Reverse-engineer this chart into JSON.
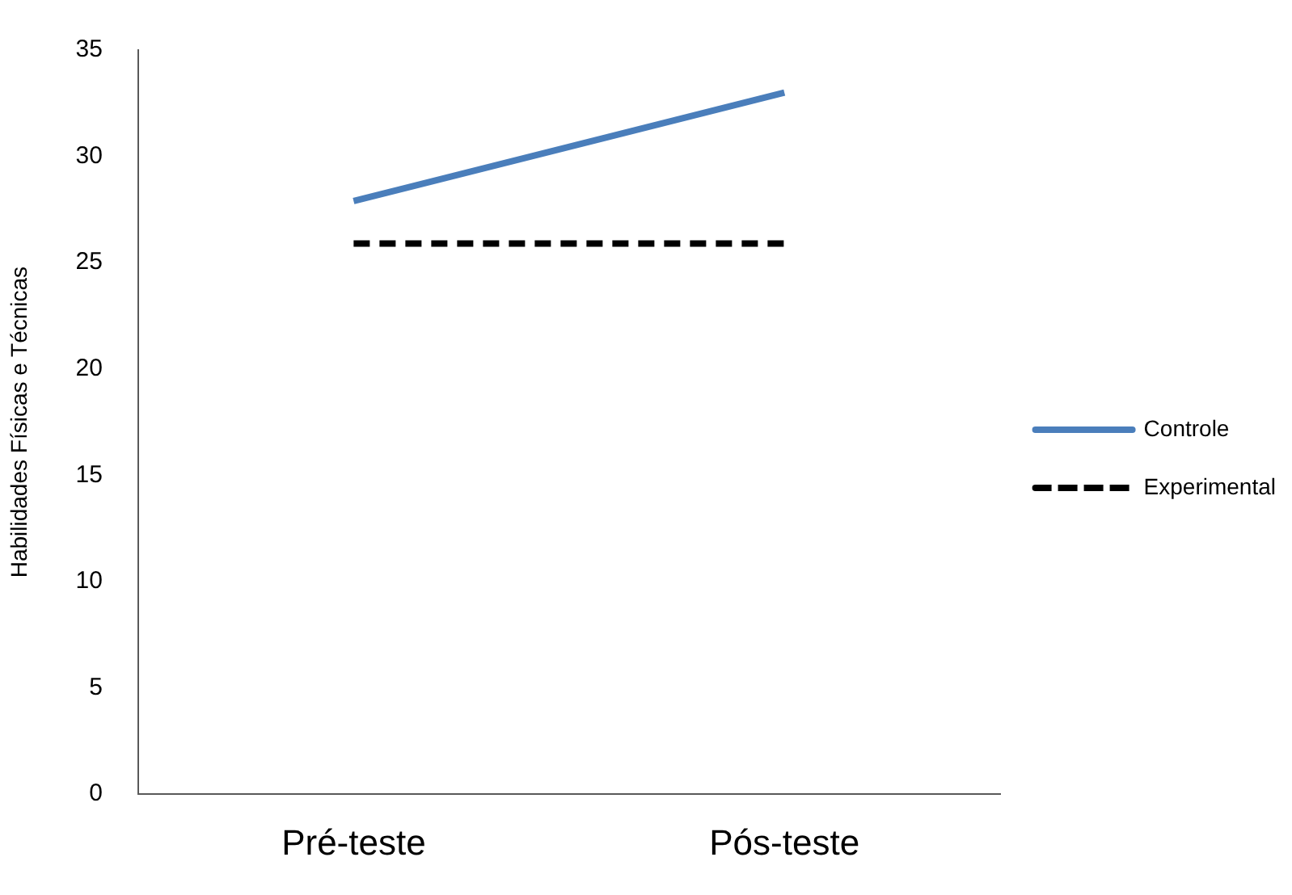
{
  "chart_data": {
    "type": "line",
    "ylabel": "Habilidades Físicas e Técnicas",
    "categories": [
      "Pré-teste",
      "Pós-teste"
    ],
    "series": [
      {
        "name": "Controle",
        "color": "#4a7ebb",
        "values": [
          27.9,
          33
        ]
      },
      {
        "name": "Experimental",
        "color": "#000000",
        "values": [
          25.9,
          25.9
        ],
        "line_style": "dashed"
      }
    ],
    "ylim": [
      0,
      35
    ],
    "yticks": [
      0,
      5,
      10,
      15,
      20,
      25,
      30,
      35
    ],
    "grid": false,
    "legend": "right",
    "marker": "none"
  }
}
